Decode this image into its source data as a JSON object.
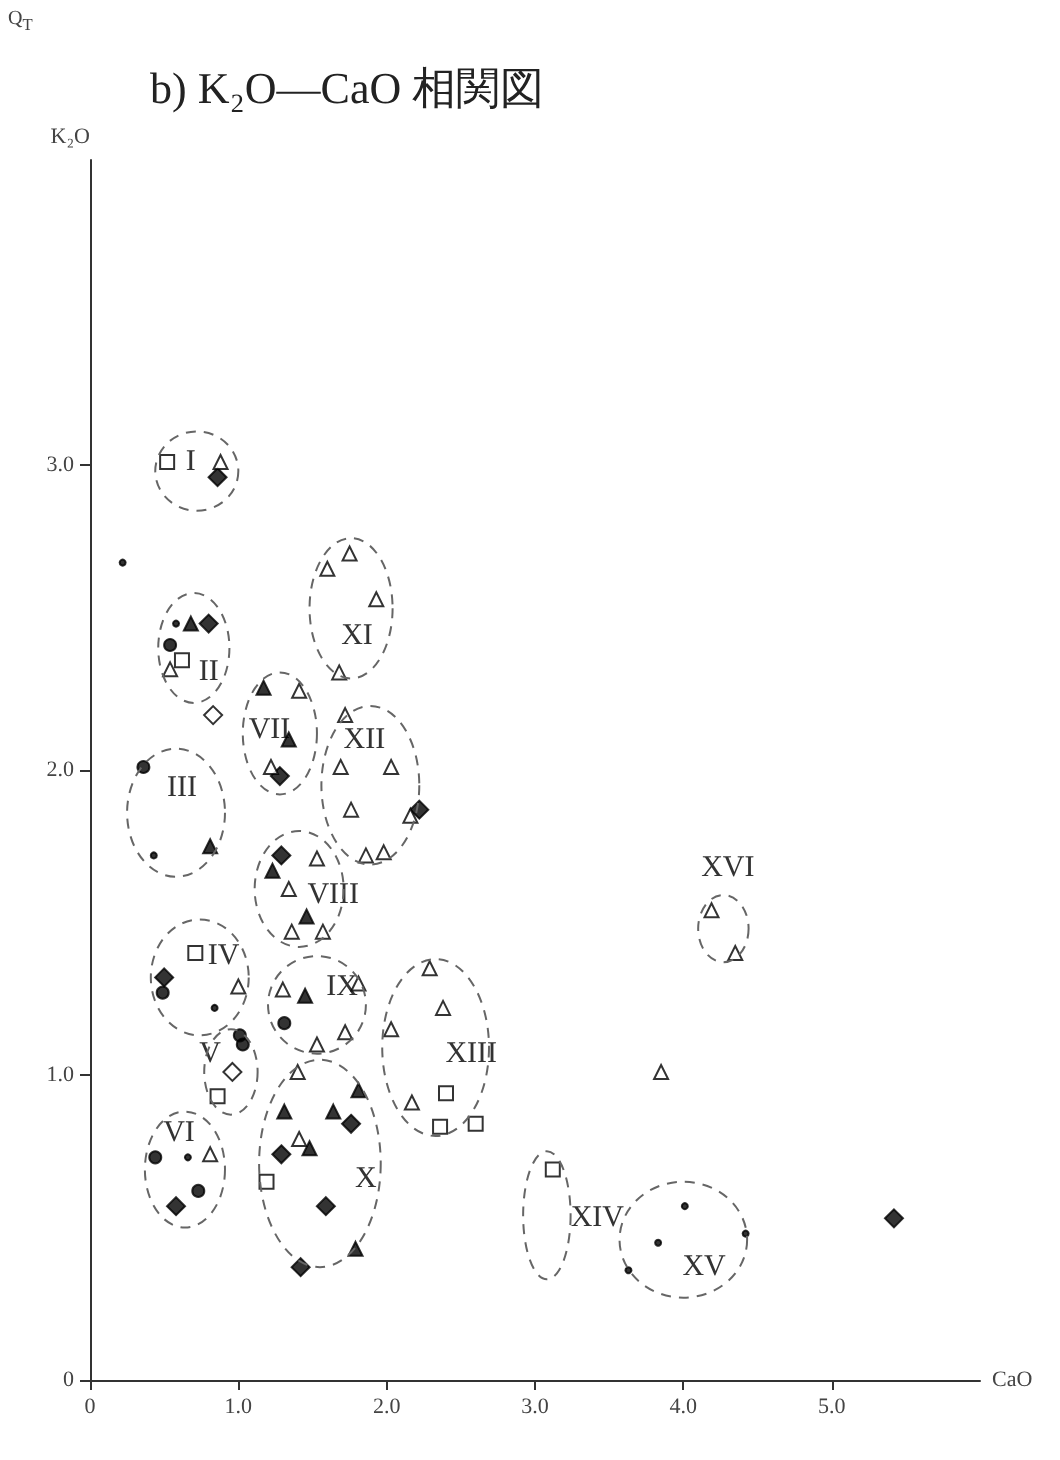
{
  "chart_data": {
    "type": "scatter",
    "title": "b) K₂O—CaO 相関図",
    "xlabel": "CaO",
    "ylabel": "K₂O",
    "xlim": [
      0,
      6
    ],
    "xticks": [
      0,
      {
        "value": 1,
        "label": "1.0"
      },
      {
        "value": 2,
        "label": "2.0"
      },
      {
        "value": 3,
        "label": "3.0"
      },
      {
        "value": 4,
        "label": "4.0"
      },
      {
        "value": 5,
        "label": "5.0"
      }
    ],
    "ylim": [
      0,
      4
    ],
    "yticks": [
      0,
      {
        "value": 1,
        "label": "1.0"
      },
      {
        "value": 2,
        "label": "2.0"
      },
      {
        "value": 3,
        "label": "3.0"
      }
    ],
    "annotations": [
      "Q$_{T}$",
      "I",
      "II",
      "III",
      "IV",
      "V",
      "VI",
      "VII",
      "VIII",
      "IX",
      "X",
      "XI",
      "XII",
      "XIII",
      "XIV",
      "XV",
      "XVI"
    ],
    "series": [
      {
        "marker": "diamond",
        "color": "#000000",
        "x": [
          0.86,
          0.8,
          1.28,
          2.22,
          1.29,
          1.76,
          1.59,
          1.42,
          1.29,
          0.5,
          0.58,
          5.42
        ],
        "values": [
          2.96,
          2.48,
          1.98,
          1.87,
          1.72,
          0.84,
          0.57,
          0.37,
          0.74,
          1.32,
          0.57,
          0.53
        ]
      },
      {
        "marker": "diamond",
        "color": "#ffffff",
        "x": [
          0.83,
          0.96
        ],
        "values": [
          2.18,
          1.01
        ]
      },
      {
        "marker": "triangle",
        "color": "#000000",
        "x": [
          0.68,
          1.34,
          1.17,
          0.81,
          1.46,
          1.23,
          1.45,
          1.81,
          1.79,
          1.64,
          1.48,
          1.31
        ],
        "values": [
          2.48,
          2.1,
          2.27,
          1.75,
          1.52,
          1.67,
          1.26,
          0.95,
          0.43,
          0.88,
          0.76,
          0.88
        ]
      },
      {
        "marker": "triangle",
        "color": "#ffffff",
        "x": [
          0.88,
          0.54,
          1.93,
          1.75,
          1.6,
          1.68,
          1.41,
          1.22,
          2.03,
          1.69,
          1.72,
          2.16,
          1.98,
          1.86,
          1.76,
          1.53,
          1.57,
          1.34,
          1.36,
          1.81,
          1.72,
          1.53,
          1.3,
          1.41,
          1.4,
          2.38,
          2.29,
          2.17,
          2.03,
          1.0,
          0.81,
          3.85,
          4.19,
          4.35
        ],
        "values": [
          3.01,
          2.33,
          2.56,
          2.71,
          2.66,
          2.32,
          2.26,
          2.01,
          2.01,
          2.01,
          2.18,
          1.85,
          1.73,
          1.72,
          1.87,
          1.71,
          1.47,
          1.61,
          1.47,
          1.3,
          1.14,
          1.1,
          1.28,
          0.79,
          1.01,
          1.22,
          1.35,
          0.91,
          1.15,
          1.29,
          0.74,
          1.01,
          1.54,
          1.4
        ]
      },
      {
        "marker": "square",
        "color": "#ffffff",
        "x": [
          0.52,
          0.62,
          1.19,
          2.6,
          2.4,
          2.36,
          0.71,
          0.86,
          3.12
        ],
        "values": [
          3.01,
          2.36,
          0.65,
          0.84,
          0.94,
          0.83,
          1.4,
          0.93,
          0.69
        ]
      },
      {
        "marker": "circle",
        "color": "#000000",
        "x": [
          0.54,
          0.36,
          1.31,
          0.49,
          1.03,
          1.01,
          0.73,
          0.44
        ],
        "values": [
          2.41,
          2.01,
          1.17,
          1.27,
          1.1,
          1.13,
          0.62,
          0.73
        ]
      },
      {
        "marker": "star",
        "color": "#000000",
        "x": [
          0.58,
          0.22,
          0.43,
          0.84,
          0.66,
          4.42,
          4.01,
          3.83,
          3.63
        ],
        "values": [
          2.48,
          2.68,
          1.72,
          1.22,
          0.73,
          0.48,
          0.57,
          0.45,
          0.36
        ]
      }
    ]
  }
}
